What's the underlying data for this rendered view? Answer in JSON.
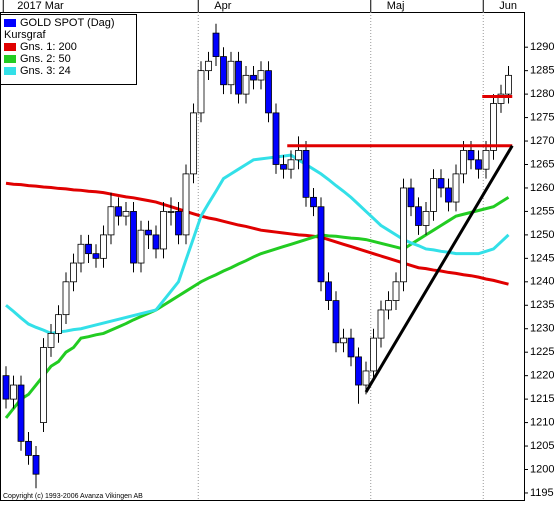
{
  "chart_data": {
    "type": "candlestick",
    "categories": [
      "2017 Mar",
      null,
      null,
      null,
      null,
      null,
      null,
      null,
      null,
      null,
      null,
      null,
      null,
      null,
      null,
      null,
      null,
      null,
      null,
      null,
      null,
      null,
      null,
      null,
      null,
      null,
      "Apr",
      null,
      null,
      null,
      null,
      null,
      null,
      null,
      null,
      null,
      null,
      null,
      null,
      null,
      null,
      null,
      null,
      null,
      null,
      null,
      null,
      null,
      null,
      "Maj",
      null,
      null,
      null,
      null,
      null,
      null,
      null,
      null,
      null,
      null,
      null,
      null,
      null,
      null,
      "Jun",
      null,
      null,
      null
    ],
    "name": "GOLD SPOT (Dag)",
    "legend_note": "Kursgraf",
    "copyright": "Copyright (c) 1993-2006 Avanza Vikingen AB",
    "color": "#0000ff",
    "legend": "upper left",
    "open": [
      1220,
      1215,
      1218,
      1206,
      1203,
      1210,
      1226,
      1229,
      1233,
      1240,
      1244,
      1248,
      1246,
      1245,
      1250,
      1256,
      1254,
      1255,
      1244,
      1251,
      1250,
      1247,
      1255,
      1255,
      1250,
      1263,
      1276,
      1285,
      1293,
      1288,
      1282,
      1287,
      1280,
      1284,
      1283,
      1285,
      1276,
      1265,
      1264,
      1266,
      1268,
      1258,
      1256,
      1240,
      1236,
      1227,
      1228,
      1224,
      1218,
      1221,
      1228,
      1234,
      1236,
      1240,
      1260,
      1256,
      1252,
      1255,
      1262,
      1260,
      1257,
      1263,
      1268,
      1266,
      1264,
      1268,
      1278,
      1280
    ],
    "high": [
      1222,
      1220,
      1220,
      1208,
      1205,
      1228,
      1231,
      1235,
      1242,
      1246,
      1250,
      1250,
      1248,
      1252,
      1259,
      1258,
      1257,
      1257,
      1253,
      1253,
      1252,
      1257,
      1258,
      1257,
      1265,
      1278,
      1287,
      1289,
      1295,
      1290,
      1289,
      1289,
      1286,
      1286,
      1287,
      1287,
      1278,
      1267,
      1268,
      1271,
      1270,
      1260,
      1258,
      1242,
      1238,
      1230,
      1230,
      1226,
      1223,
      1230,
      1236,
      1238,
      1242,
      1262,
      1262,
      1258,
      1257,
      1264,
      1264,
      1262,
      1265,
      1270,
      1270,
      1268,
      1270,
      1280,
      1282,
      1286
    ],
    "low": [
      1213,
      1213,
      1204,
      1201,
      1196,
      1208,
      1224,
      1227,
      1231,
      1238,
      1242,
      1244,
      1243,
      1243,
      1248,
      1252,
      1252,
      1242,
      1242,
      1247,
      1245,
      1245,
      1252,
      1248,
      1248,
      1261,
      1274,
      1283,
      1286,
      1280,
      1280,
      1278,
      1278,
      1281,
      1281,
      1274,
      1263,
      1262,
      1262,
      1264,
      1256,
      1254,
      1238,
      1234,
      1225,
      1225,
      1222,
      1214,
      1216,
      1219,
      1226,
      1232,
      1234,
      1238,
      1254,
      1250,
      1250,
      1253,
      1258,
      1255,
      1255,
      1261,
      1264,
      1262,
      1262,
      1266,
      1276,
      1278
    ],
    "close": [
      1215,
      1218,
      1206,
      1203,
      1199,
      1226,
      1229,
      1233,
      1240,
      1244,
      1248,
      1246,
      1245,
      1250,
      1256,
      1254,
      1255,
      1244,
      1251,
      1250,
      1247,
      1255,
      1255,
      1250,
      1263,
      1276,
      1285,
      1287,
      1288,
      1282,
      1287,
      1280,
      1284,
      1283,
      1285,
      1276,
      1265,
      1264,
      1266,
      1268,
      1258,
      1256,
      1240,
      1236,
      1227,
      1228,
      1224,
      1218,
      1221,
      1228,
      1234,
      1236,
      1240,
      1260,
      1256,
      1252,
      1255,
      1262,
      1260,
      1257,
      1263,
      1268,
      1266,
      1264,
      1268,
      1278,
      1280,
      1284
    ],
    "series": [
      {
        "name": "Gns. 1: 200",
        "color": "#e00000",
        "values": [
          1261,
          1260.8,
          1260.7,
          1260.5,
          1260.4,
          1260.2,
          1260.1,
          1259.9,
          1259.8,
          1259.6,
          1259.5,
          1259.3,
          1259.2,
          1259,
          1258.7,
          1258.4,
          1258.1,
          1257.9,
          1257.6,
          1257.3,
          1257,
          1256.5,
          1256,
          1255.5,
          1255,
          1254.5,
          1254,
          1253.6,
          1253.3,
          1252.9,
          1252.5,
          1252.1,
          1251.8,
          1251.4,
          1251,
          1250.8,
          1250.6,
          1250.4,
          1250.2,
          1250,
          1249.9,
          1249.7,
          1249.5,
          1249,
          1248.5,
          1248,
          1247.5,
          1247,
          1246.5,
          1246,
          1245.5,
          1245,
          1244.5,
          1244,
          1243.5,
          1243,
          1242.8,
          1242.5,
          1242.3,
          1242,
          1241.8,
          1241.5,
          1241.3,
          1241,
          1240.6,
          1240.3,
          1239.9,
          1239.5
        ]
      },
      {
        "name": "Gns. 2: 50",
        "color": "#22cc22",
        "values": [
          1211,
          1213,
          1215,
          1216,
          1218,
          1220,
          1222,
          1223,
          1225,
          1226,
          1228,
          1228.3,
          1228.7,
          1229,
          1229.7,
          1230.4,
          1231.1,
          1231.9,
          1232.6,
          1233.3,
          1234,
          1235,
          1236,
          1237,
          1238,
          1239,
          1240,
          1240.8,
          1241.5,
          1242.3,
          1243,
          1243.8,
          1244.5,
          1245.3,
          1246,
          1246.5,
          1247,
          1247.5,
          1248,
          1248.5,
          1249,
          1249.5,
          1250,
          1249.8,
          1249.7,
          1249.5,
          1249.3,
          1249.2,
          1249,
          1248.6,
          1248.2,
          1247.8,
          1247.4,
          1247,
          1248,
          1249,
          1250,
          1251,
          1252,
          1253,
          1254,
          1254.4,
          1254.8,
          1255.2,
          1255.6,
          1256,
          1257,
          1258
        ]
      },
      {
        "name": "Gns. 3: 24",
        "color": "#33e0e8",
        "values": [
          1235,
          1233.7,
          1232.3,
          1231,
          1230.3,
          1229.7,
          1229,
          1229.3,
          1229.5,
          1229.8,
          1230,
          1230.4,
          1230.8,
          1231.2,
          1231.6,
          1232,
          1232.4,
          1232.8,
          1233.2,
          1233.6,
          1234,
          1236,
          1238,
          1240,
          1244.7,
          1249.3,
          1254,
          1256.7,
          1259.3,
          1262,
          1263,
          1264,
          1265,
          1266,
          1266.2,
          1266.4,
          1266.6,
          1266.8,
          1267,
          1266,
          1265,
          1264,
          1263,
          1261.8,
          1260.5,
          1259.3,
          1258,
          1256.5,
          1255,
          1253.5,
          1252,
          1251,
          1250,
          1249,
          1248.3,
          1247.7,
          1247,
          1246.8,
          1246.5,
          1246.3,
          1246,
          1246,
          1246,
          1246,
          1246.5,
          1247,
          1248.5,
          1250
        ]
      }
    ],
    "trendlines": [
      {
        "color": "#e00000",
        "x": [
          37.5,
          67.5
        ],
        "y": [
          1269,
          1269
        ]
      },
      {
        "color": "#e00000",
        "x": [
          63.5,
          67.5
        ],
        "y": [
          1279.5,
          1279.5
        ]
      },
      {
        "color": "#000000",
        "x": [
          48,
          67.5
        ],
        "y": [
          1216.5,
          1269
        ]
      }
    ],
    "ylim": [
      1193.5,
      1297.5
    ],
    "yticks": [
      1195,
      1200,
      1205,
      1210,
      1215,
      1220,
      1225,
      1230,
      1235,
      1240,
      1245,
      1250,
      1255,
      1260,
      1265,
      1270,
      1275,
      1280,
      1285,
      1290
    ]
  }
}
